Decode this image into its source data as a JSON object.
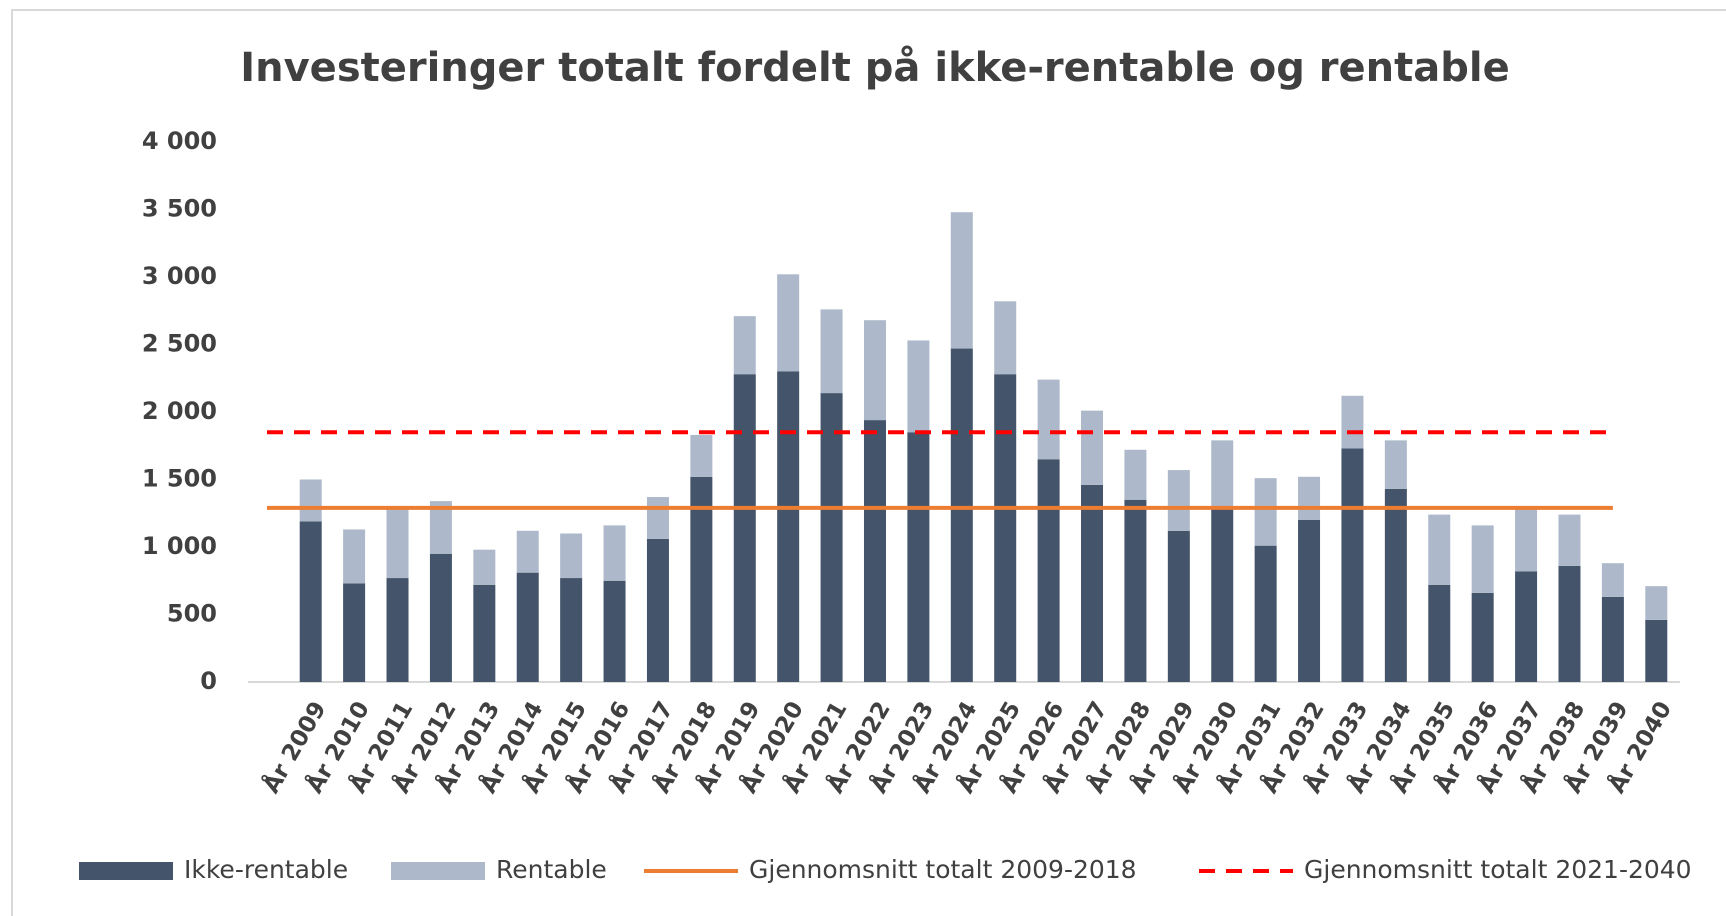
{
  "chart_data": {
    "type": "bar",
    "title": "Investeringer totalt fordelt på ikke-rentable og rentable",
    "stacked": true,
    "categories": [
      "År 2009",
      "År 2010",
      "År 2011",
      "År 2012",
      "År 2013",
      "År 2014",
      "År 2015",
      "År 2016",
      "År 2017",
      "År 2018",
      "År 2019",
      "År 2020",
      "År 2021",
      "År 2022",
      "År 2023",
      "År 2024",
      "År 2025",
      "År 2026",
      "År 2027",
      "År 2028",
      "År 2029",
      "År 2030",
      "År 2031",
      "År 2032",
      "År 2033",
      "År 2034",
      "År 2035",
      "År 2036",
      "År 2037",
      "År 2038",
      "År 2039",
      "År 2040"
    ],
    "series": [
      {
        "name": "Ikke-rentable",
        "color": "#44546a",
        "values": [
          1190,
          730,
          770,
          950,
          720,
          810,
          770,
          750,
          1060,
          1520,
          2280,
          2300,
          2140,
          1940,
          1850,
          2470,
          2280,
          1650,
          1460,
          1350,
          1120,
          1280,
          1010,
          1200,
          1730,
          1430,
          720,
          660,
          820,
          860,
          630,
          460
        ]
      },
      {
        "name": "Rentable",
        "color": "#adb9ca",
        "values": [
          310,
          400,
          510,
          390,
          260,
          310,
          330,
          410,
          310,
          310,
          430,
          720,
          620,
          740,
          680,
          1010,
          540,
          590,
          550,
          370,
          450,
          510,
          500,
          320,
          390,
          360,
          520,
          500,
          460,
          380,
          250,
          250
        ]
      }
    ],
    "lines": [
      {
        "name": "Gjennomsnitt totalt 2009-2018",
        "color": "#ed7d31",
        "value": 1290,
        "dashed": false
      },
      {
        "name": "Gjennomsnitt totalt 2021-2040",
        "color": "#ff0000",
        "value": 1850,
        "dashed": true
      }
    ],
    "ylim": [
      0,
      4000
    ],
    "yticks": [
      0,
      {
        "value": 500,
        "label": "500"
      },
      {
        "value": 1000,
        "label": "1 000"
      },
      {
        "value": 1500,
        "label": "1 500"
      },
      {
        "value": 2000,
        "label": "2 000"
      },
      {
        "value": 2500,
        "label": "2 500"
      },
      {
        "value": 3000,
        "label": "3 000"
      },
      {
        "value": 3500,
        "label": "3 500"
      },
      {
        "value": 4000,
        "label": "4 000"
      }
    ],
    "legend": "bottom"
  }
}
